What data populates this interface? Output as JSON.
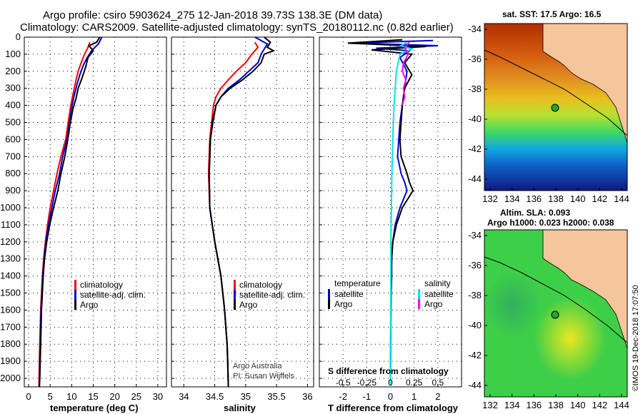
{
  "header": {
    "line1": "Argo profile: csiro 5903624_275 12-Jan-2018 39.73S 138.3E (DM data)",
    "line2": "Climatology: CARS2009. Satellite-adjusted climatology: synTS_20180112.nc (0.82d earlier)"
  },
  "colors": {
    "climatology": "#ff0000",
    "satellite": "#0000cc",
    "argo": "#000000",
    "sat_salinity": "#00e5e5",
    "argo_salinity": "#ff00ff",
    "land": "#f5c59b"
  },
  "panels": {
    "temperature": {
      "xlabel": "temperature (deg C)",
      "xticks": [
        "0",
        "5",
        "10",
        "15",
        "20",
        "25",
        "30"
      ],
      "legend": [
        "climatology",
        "satellite-adj. clim.",
        "Argo"
      ]
    },
    "salinity": {
      "xlabel": "salinity",
      "xticks": [
        "34",
        "34.5",
        "35",
        "35.5",
        "36"
      ],
      "legend": [
        "climatology",
        "satellite-adj. clim.",
        "Argo"
      ],
      "credit1": "Argo Australia",
      "credit2": "PI: Susan Wijffels"
    },
    "difference": {
      "xlabel": "T difference from climatology",
      "xticks": [
        "-2",
        "-1",
        "0",
        "1",
        "2"
      ],
      "top_label": "S difference from climatology",
      "top_ticks": [
        "-0.5",
        "-0.25",
        "0",
        "0.25",
        "0.5"
      ],
      "legend_left_title": "temperature",
      "legend_left": [
        "satellite",
        "Argo"
      ],
      "legend_right_title": "salinity",
      "legend_right": [
        "satellite",
        "Argo"
      ]
    }
  },
  "depth_ticks": [
    "0",
    "100",
    "200",
    "300",
    "400",
    "500",
    "600",
    "700",
    "800",
    "900",
    "1000",
    "1100",
    "1200",
    "1300",
    "1400",
    "1500",
    "1600",
    "1700",
    "1800",
    "1900",
    "2000"
  ],
  "maps": {
    "sst": {
      "title": "sat. SST: 17.5 Argo: 16.5",
      "xticks": [
        "132",
        "134",
        "136",
        "138",
        "140",
        "142",
        "144"
      ],
      "yticks": [
        "-34",
        "-36",
        "-38",
        "-40",
        "-42",
        "-44"
      ]
    },
    "sla": {
      "title1": "Altim. SLA: 0.093",
      "title2": "Argo h1000: 0.023 h2000: 0.038",
      "xticks": [
        "132",
        "134",
        "136",
        "138",
        "140",
        "142",
        "144"
      ],
      "yticks": [
        "-34",
        "-36",
        "-38",
        "-40",
        "-42",
        "-44"
      ],
      "stamp": "©IMOS 19-Dec-2018 17:07:50"
    }
  },
  "chart_data": [
    {
      "type": "line",
      "xlabel": "temperature (deg C)",
      "ylabel": "",
      "xlim": [
        -1,
        32
      ],
      "ylim": [
        2050,
        0
      ],
      "series": [
        {
          "name": "climatology",
          "x": [
            14.2,
            13.8,
            13.0,
            12.2,
            11.5,
            11.0,
            10.6,
            10.2,
            9.8,
            9.2,
            8.6,
            7.5,
            6.6,
            5.8,
            5.0,
            4.4,
            3.9,
            3.5,
            3.2,
            3.0,
            2.8,
            2.7,
            2.6,
            2.5,
            2.4
          ],
          "depth": [
            30,
            60,
            100,
            150,
            200,
            250,
            300,
            350,
            400,
            500,
            600,
            700,
            800,
            900,
            1000,
            1100,
            1200,
            1300,
            1400,
            1500,
            1600,
            1700,
            1800,
            1900,
            2050
          ]
        },
        {
          "name": "satellite-adj. clim.",
          "x": [
            17.0,
            16.2,
            14.6,
            13.6,
            12.8,
            11.9,
            11.2,
            10.6,
            10.1,
            9.5,
            8.9,
            7.9,
            7.2,
            6.2,
            5.4,
            4.6,
            4.0,
            3.6,
            3.3,
            3.1,
            2.9,
            2.8,
            2.7,
            2.6,
            2.5
          ],
          "depth": [
            0,
            40,
            80,
            120,
            160,
            220,
            280,
            340,
            400,
            500,
            600,
            700,
            800,
            900,
            1000,
            1100,
            1200,
            1300,
            1400,
            1500,
            1600,
            1700,
            1800,
            1900,
            2050
          ]
        },
        {
          "name": "Argo",
          "x": [
            16.5,
            15.8,
            14.0,
            15.0,
            13.8,
            13.2,
            12.4,
            11.5,
            11.0,
            10.3,
            9.7,
            9.1,
            8.4,
            7.5,
            6.8,
            5.8,
            4.9,
            4.2,
            3.7,
            3.4,
            3.2,
            3.0,
            2.9,
            2.8,
            2.7,
            2.6,
            2.5
          ],
          "depth": [
            0,
            30,
            50,
            80,
            120,
            180,
            240,
            300,
            360,
            420,
            500,
            600,
            700,
            800,
            900,
            1000,
            1100,
            1200,
            1300,
            1400,
            1500,
            1600,
            1700,
            1800,
            1900,
            2000,
            2050
          ]
        }
      ]
    },
    {
      "type": "line",
      "xlabel": "salinity",
      "ylabel": "",
      "xlim": [
        33.8,
        36.1
      ],
      "ylim": [
        2050,
        0
      ],
      "series": [
        {
          "name": "climatology",
          "x": [
            35.15,
            35.2,
            35.1,
            35.0,
            34.85,
            34.72,
            34.6,
            34.52,
            34.48,
            34.45,
            34.42,
            34.4,
            34.42,
            34.46,
            34.5,
            34.55,
            34.6,
            34.63,
            34.66,
            34.68,
            34.7,
            34.71,
            34.72
          ],
          "depth": [
            30,
            60,
            100,
            150,
            200,
            250,
            300,
            350,
            400,
            500,
            600,
            800,
            1000,
            1100,
            1200,
            1300,
            1400,
            1500,
            1600,
            1700,
            1800,
            1900,
            2050
          ]
        },
        {
          "name": "satellite-adj. clim.",
          "x": [
            35.15,
            35.35,
            35.25,
            35.2,
            35.05,
            34.9,
            34.72,
            34.6,
            34.52,
            34.47,
            34.43,
            34.41,
            34.42,
            34.46,
            34.5,
            34.55,
            34.6,
            34.63,
            34.66,
            34.68,
            34.7,
            34.71,
            34.72
          ],
          "depth": [
            0,
            40,
            100,
            150,
            200,
            250,
            300,
            350,
            400,
            500,
            600,
            800,
            1000,
            1100,
            1200,
            1300,
            1400,
            1500,
            1600,
            1700,
            1800,
            1900,
            2050
          ]
        },
        {
          "name": "Argo",
          "x": [
            35.3,
            35.4,
            35.35,
            35.45,
            35.3,
            35.25,
            35.12,
            34.95,
            34.75,
            34.6,
            34.52,
            34.46,
            34.43,
            34.41,
            34.42,
            34.46,
            34.5,
            34.55,
            34.6,
            34.63,
            34.66,
            34.68,
            34.7,
            34.71,
            34.72
          ],
          "depth": [
            0,
            30,
            60,
            80,
            100,
            150,
            200,
            250,
            300,
            350,
            400,
            500,
            600,
            800,
            1000,
            1100,
            1200,
            1300,
            1400,
            1500,
            1600,
            1700,
            1800,
            1900,
            2050
          ]
        }
      ]
    },
    {
      "type": "line",
      "xlabel": "T difference from climatology",
      "ylabel": "",
      "xlim": [
        -3,
        3
      ],
      "ylim": [
        2050,
        0
      ],
      "series": [
        {
          "name": "temperature satellite",
          "x": [
            1.8,
            -1.5,
            2.0,
            -0.6,
            0.8,
            0.4,
            0.7,
            0.6,
            0.5,
            0.4,
            0.35,
            0.3,
            0.45,
            0.6,
            0.7,
            0.4,
            0.2,
            0.1,
            0.05,
            0.05,
            0.03,
            0.02,
            0.01,
            0.0
          ],
          "depth": [
            20,
            35,
            50,
            65,
            80,
            120,
            200,
            300,
            400,
            500,
            600,
            700,
            800,
            850,
            900,
            1000,
            1100,
            1200,
            1300,
            1400,
            1500,
            1600,
            1800,
            2050
          ]
        },
        {
          "name": "temperature Argo",
          "x": [
            0.5,
            -1.8,
            1.5,
            -0.8,
            0.9,
            0.6,
            0.9,
            0.6,
            0.5,
            0.45,
            0.4,
            0.45,
            0.7,
            0.8,
            0.95,
            0.5,
            0.25,
            0.1,
            0.05,
            0.03,
            0.02,
            0.01,
            0.0
          ],
          "depth": [
            15,
            35,
            55,
            75,
            100,
            150,
            220,
            300,
            400,
            500,
            600,
            700,
            800,
            850,
            900,
            1000,
            1100,
            1200,
            1300,
            1400,
            1500,
            1800,
            2050
          ]
        },
        {
          "name": "salinity satellite",
          "x": [
            0.7,
            0.45,
            0.9,
            0.4,
            0.25,
            0.2,
            0.15,
            0.12,
            0.1,
            0.08,
            0.06,
            0.05,
            0.04,
            0.02,
            0.0
          ],
          "depth": [
            30,
            50,
            70,
            100,
            200,
            300,
            400,
            500,
            600,
            700,
            800,
            900,
            1000,
            1200,
            2050
          ]
        },
        {
          "name": "salinity Argo",
          "x": [
            0.8,
            0.6,
            0.75,
            0.55,
            0.5,
            0.65,
            0.55,
            0.6,
            0.5
          ],
          "depth": [
            30,
            60,
            100,
            150,
            200,
            250,
            300,
            350,
            400
          ]
        }
      ]
    }
  ]
}
